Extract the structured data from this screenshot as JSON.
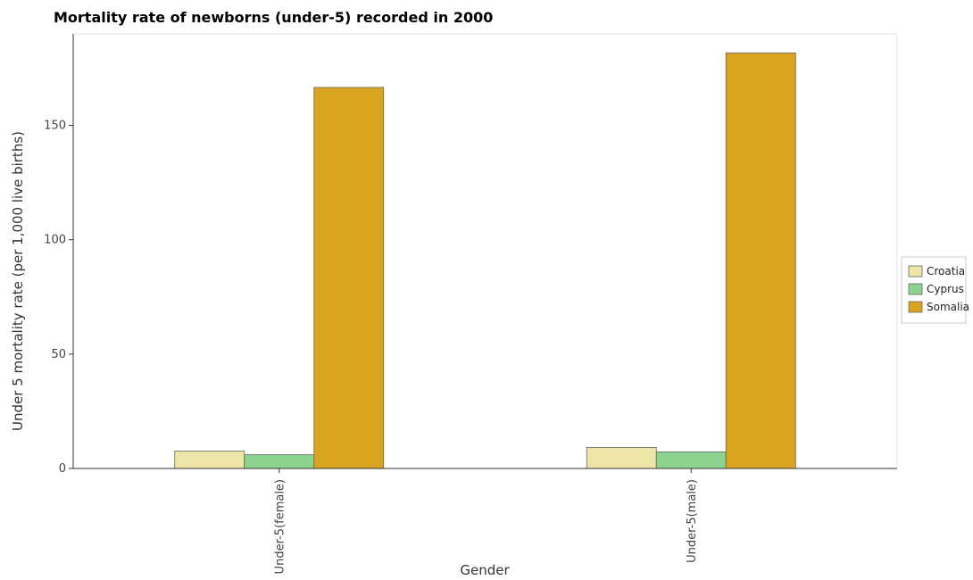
{
  "chart_data": {
    "type": "bar",
    "title": "Mortality rate of newborns (under-5) recorded in 2000",
    "xlabel": "Gender",
    "ylabel": "Under 5 mortality rate (per 1,000 live births)",
    "categories": [
      "Under-5(female)",
      "Under-5(male)"
    ],
    "series": [
      {
        "name": "Croatia",
        "values": [
          7.6,
          9.2
        ],
        "color": "#ede6a8"
      },
      {
        "name": "Cyprus",
        "values": [
          6.0,
          7.2
        ],
        "color": "#8bd38f"
      },
      {
        "name": "Somalia",
        "values": [
          166.6,
          181.7
        ],
        "color": "#d9a41f"
      }
    ],
    "ylim": [
      0,
      190
    ],
    "yticks": [
      0,
      50,
      100,
      150
    ],
    "grid": false,
    "legend": "right"
  }
}
